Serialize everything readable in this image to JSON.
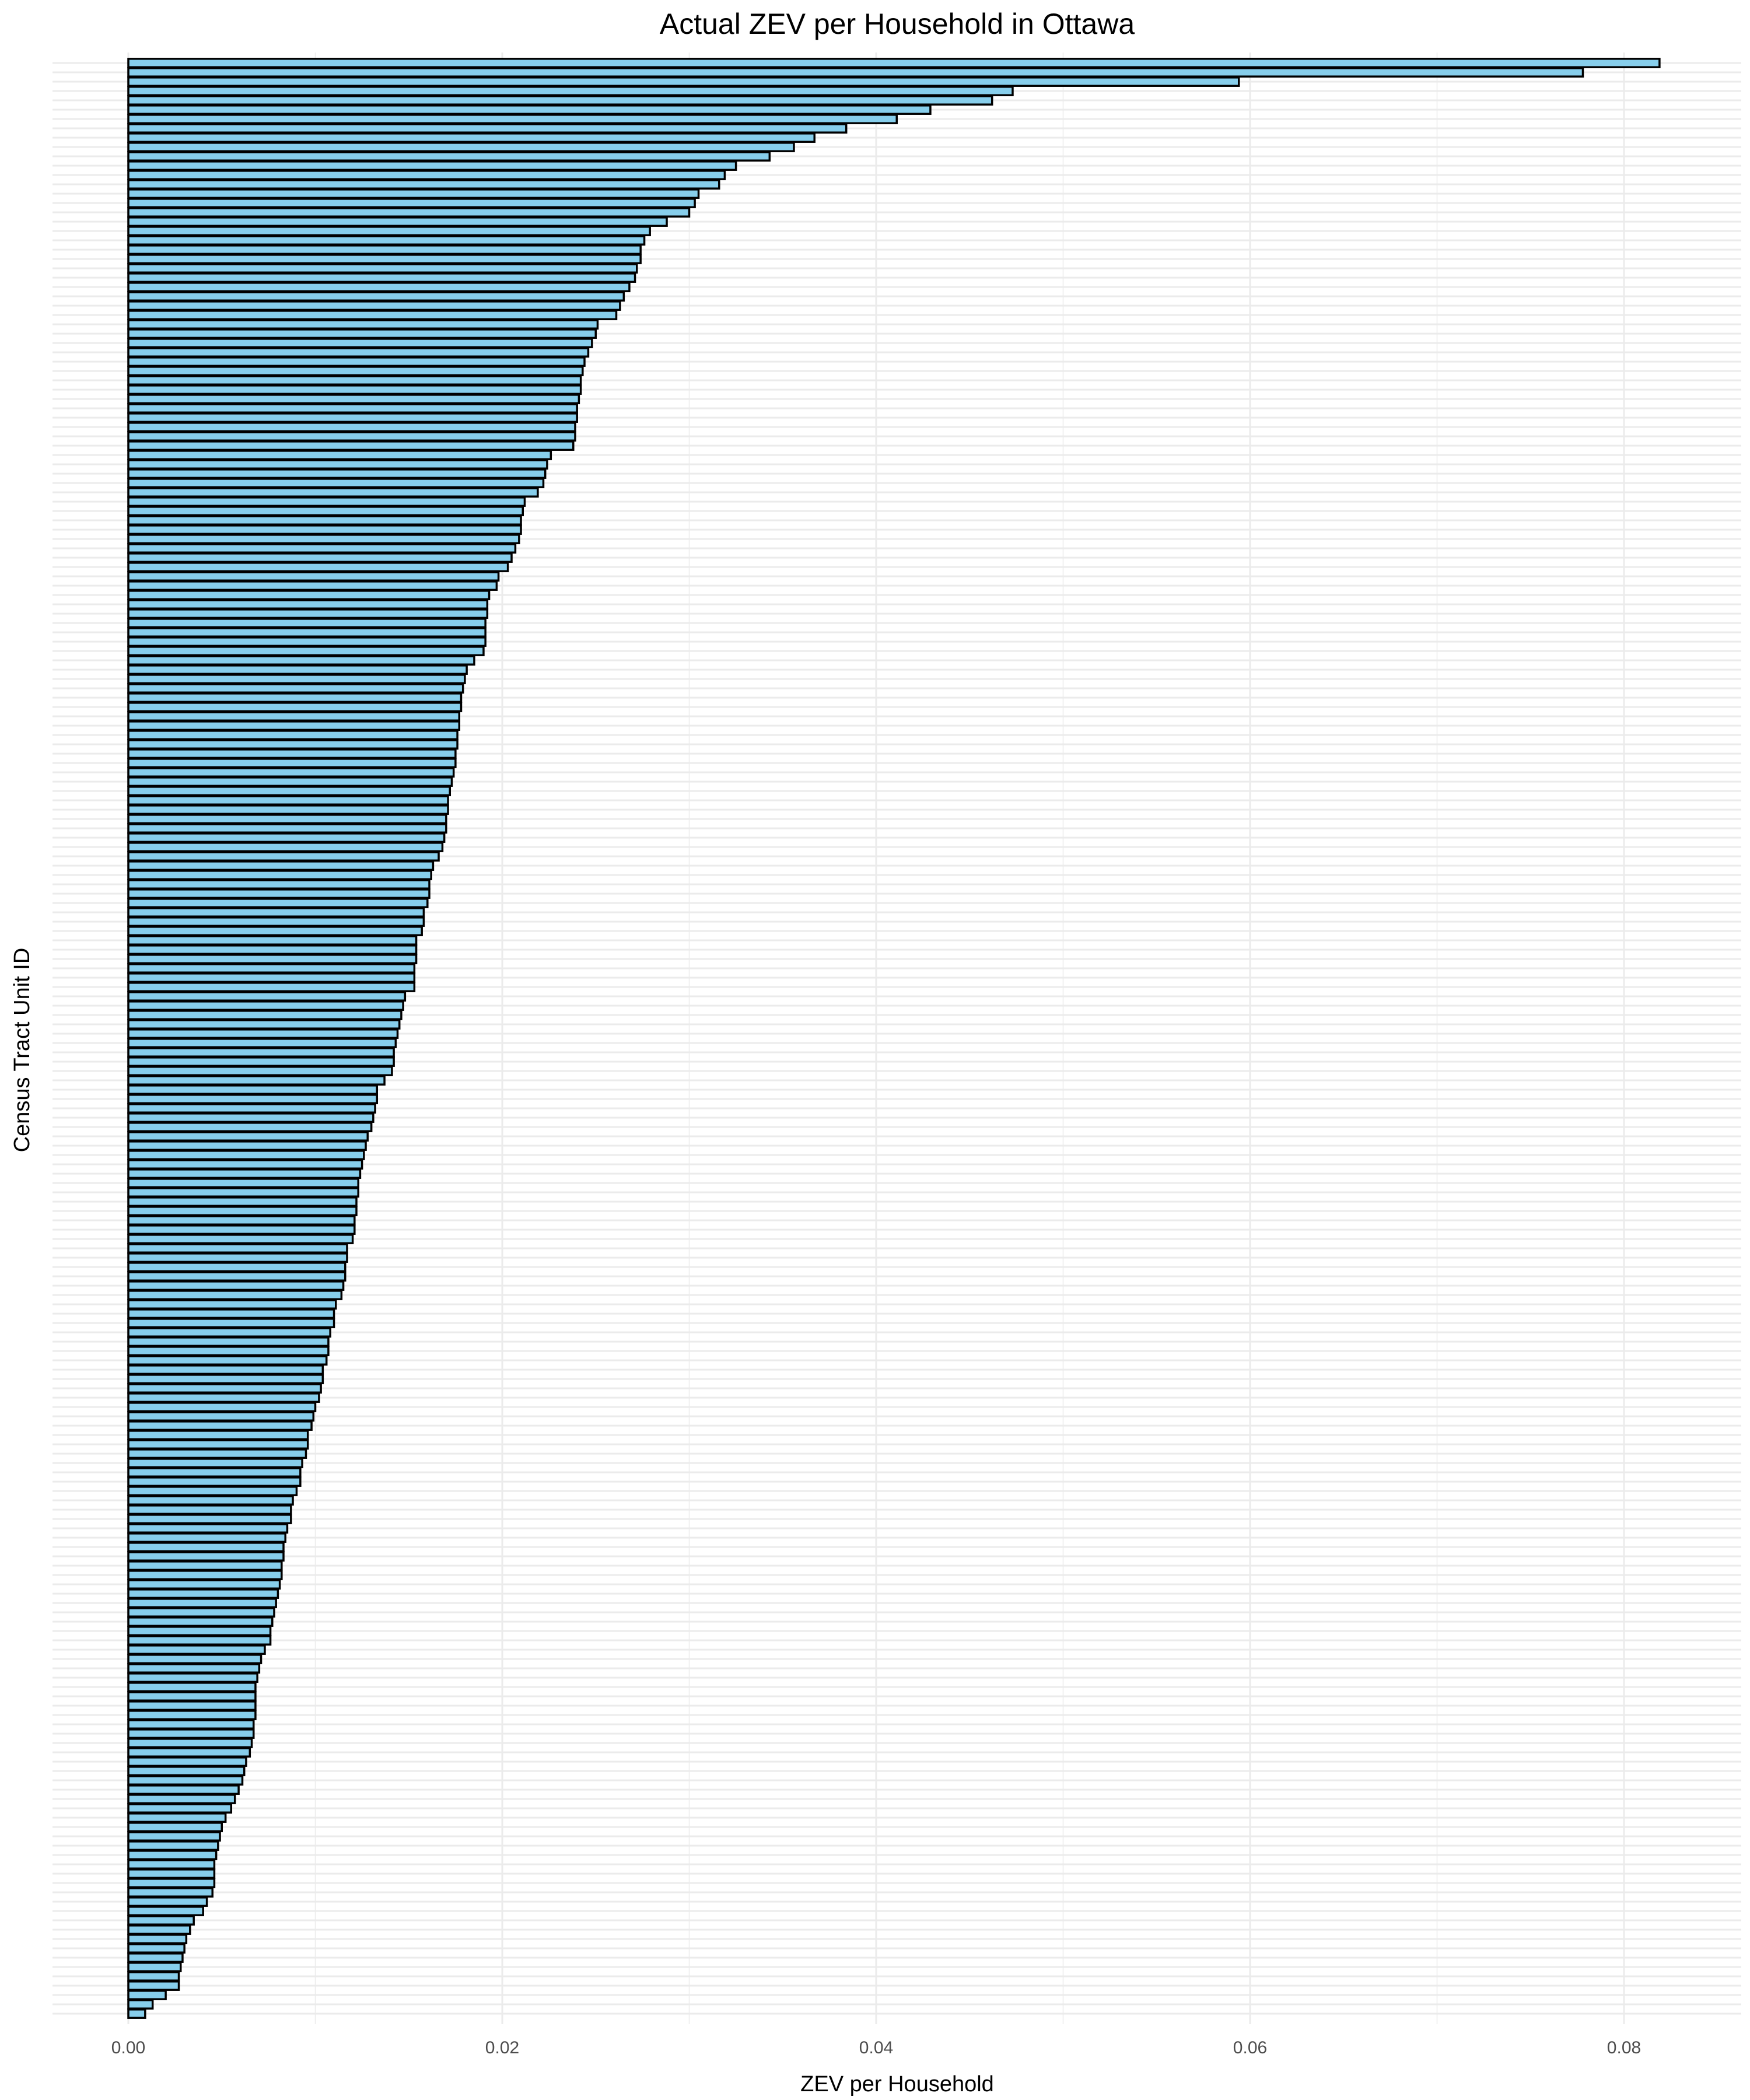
{
  "chart_data": {
    "type": "bar",
    "orientation": "horizontal",
    "title": "Actual ZEV per Household in Ottawa",
    "xlabel": "ZEV per Household",
    "ylabel": "Census Tract Unit ID",
    "xlim": [
      0,
      0.0855
    ],
    "x_ticks": [
      0,
      0.02,
      0.04,
      0.06,
      0.08
    ],
    "x_tick_labels": [
      "0.00",
      "0.02",
      "0.04",
      "0.06",
      "0.08"
    ],
    "grid": true,
    "legend": "none",
    "sorted": "descending",
    "values": [
      0.0819,
      0.0778,
      0.0594,
      0.0473,
      0.0462,
      0.0429,
      0.0411,
      0.0384,
      0.0367,
      0.0356,
      0.0343,
      0.0325,
      0.0319,
      0.0316,
      0.0305,
      0.0303,
      0.03,
      0.0288,
      0.0279,
      0.0276,
      0.0274,
      0.0274,
      0.0272,
      0.0271,
      0.0268,
      0.0265,
      0.0263,
      0.0261,
      0.0251,
      0.025,
      0.0248,
      0.0246,
      0.0244,
      0.0243,
      0.0242,
      0.0242,
      0.0241,
      0.024,
      0.024,
      0.0239,
      0.0239,
      0.0238,
      0.0226,
      0.0224,
      0.0223,
      0.0222,
      0.0219,
      0.0212,
      0.0211,
      0.021,
      0.021,
      0.0209,
      0.0207,
      0.0205,
      0.0203,
      0.0198,
      0.0197,
      0.0193,
      0.0192,
      0.0192,
      0.0191,
      0.0191,
      0.0191,
      0.019,
      0.0185,
      0.0181,
      0.018,
      0.0179,
      0.0178,
      0.0178,
      0.0177,
      0.0177,
      0.0176,
      0.0176,
      0.0175,
      0.0175,
      0.0174,
      0.0173,
      0.0172,
      0.0171,
      0.0171,
      0.017,
      0.017,
      0.0169,
      0.0168,
      0.0166,
      0.0163,
      0.0162,
      0.0161,
      0.0161,
      0.016,
      0.0158,
      0.0158,
      0.0157,
      0.0154,
      0.0154,
      0.0154,
      0.0153,
      0.0153,
      0.0153,
      0.0148,
      0.0147,
      0.0146,
      0.0145,
      0.0144,
      0.0143,
      0.0142,
      0.0142,
      0.0141,
      0.0137,
      0.0133,
      0.0133,
      0.0132,
      0.0131,
      0.013,
      0.0128,
      0.0127,
      0.0126,
      0.0125,
      0.0124,
      0.0123,
      0.0123,
      0.0122,
      0.0122,
      0.0121,
      0.0121,
      0.012,
      0.0117,
      0.0117,
      0.0116,
      0.0116,
      0.0115,
      0.0114,
      0.0111,
      0.011,
      0.011,
      0.0108,
      0.0107,
      0.0107,
      0.0106,
      0.0104,
      0.0104,
      0.0103,
      0.0102,
      0.01,
      0.0099,
      0.0098,
      0.0096,
      0.0096,
      0.0095,
      0.0093,
      0.0092,
      0.0092,
      0.009,
      0.0088,
      0.0087,
      0.0087,
      0.0085,
      0.0084,
      0.0083,
      0.0083,
      0.0082,
      0.0082,
      0.0081,
      0.008,
      0.0079,
      0.0078,
      0.0077,
      0.0076,
      0.0076,
      0.0073,
      0.0071,
      0.007,
      0.0069,
      0.0068,
      0.0068,
      0.0068,
      0.0068,
      0.0067,
      0.0067,
      0.0066,
      0.0065,
      0.0063,
      0.0062,
      0.0061,
      0.0059,
      0.0057,
      0.0055,
      0.0052,
      0.005,
      0.0049,
      0.0048,
      0.0047,
      0.0046,
      0.0046,
      0.0046,
      0.0045,
      0.0042,
      0.004,
      0.0035,
      0.0033,
      0.0031,
      0.003,
      0.0029,
      0.0028,
      0.0027,
      0.0027,
      0.002,
      0.0013,
      0.0009
    ]
  },
  "colors": {
    "bar_fill": "#87ceeb",
    "bar_stroke": "#000000",
    "grid": "#ebebeb",
    "background": "#ffffff",
    "tick_text": "#4d4d4d"
  }
}
